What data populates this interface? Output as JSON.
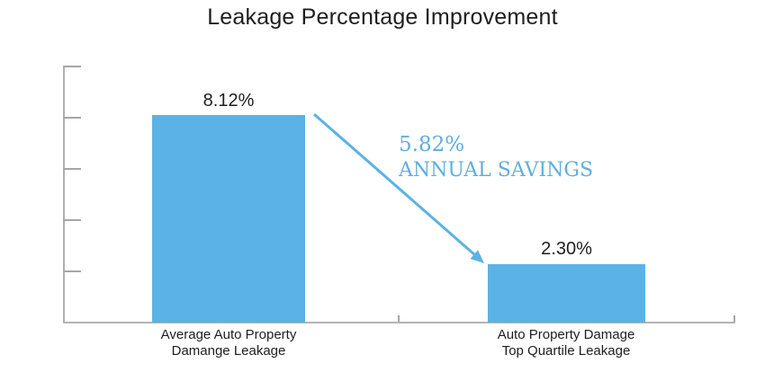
{
  "chart_data": {
    "type": "bar",
    "title": "Leakage Percentage Improvement",
    "categories": [
      "Average Auto Property\nDamange Leakage",
      "Auto Property Damage\nTop Quartile Leakage"
    ],
    "values": [
      8.12,
      2.3
    ],
    "value_labels": [
      "8.12%",
      "2.30%"
    ],
    "xlabel": "",
    "ylabel": "",
    "ylim": [
      0,
      10
    ],
    "y_tick_step": 2,
    "y_tick_labels_shown": false,
    "grid": false,
    "legend": false,
    "bar_color": "#5BB2E4",
    "arrow_color": "#5BB2E4",
    "axis_color": "#B0B0B0",
    "label_color": "#1E1E1E",
    "annotation": {
      "value": "5.82%",
      "label": "ANNUAL SAVINGS",
      "color": "#5FAEDD",
      "arrow": true
    }
  }
}
